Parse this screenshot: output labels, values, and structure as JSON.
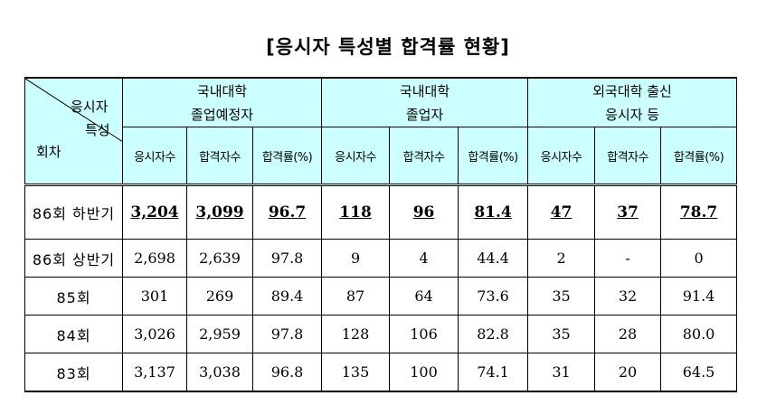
{
  "title": "[응시자 특성별 합격률 현황]",
  "corner": {
    "top_label": "응시자",
    "mid_label": "특성",
    "bottom_label": "회차"
  },
  "groups": [
    {
      "line1": "국내대학",
      "line2": "졸업예정자"
    },
    {
      "line1": "국내대학",
      "line2": "졸업자"
    },
    {
      "line1": "외국대학 출신",
      "line2": "응시자 등"
    }
  ],
  "subheaders": [
    "응시자수",
    "합격자수",
    "합격률(%)",
    "응시자수",
    "합격자수",
    "합격률(%)",
    "응시자수",
    "합격자수",
    "합격률(%)"
  ],
  "rows": [
    {
      "round": "86회 하반기",
      "cells": [
        "3,204",
        "3,099",
        "96.7",
        "118",
        "96",
        "81.4",
        "47",
        "37",
        "78.7"
      ]
    },
    {
      "round": "86회 상반기",
      "cells": [
        "2,698",
        "2,639",
        "97.8",
        "9",
        "4",
        "44.4",
        "2",
        "-",
        "0"
      ]
    },
    {
      "round": "85회",
      "cells": [
        "301",
        "269",
        "89.4",
        "87",
        "64",
        "73.6",
        "35",
        "32",
        "91.4"
      ]
    },
    {
      "round": "84회",
      "cells": [
        "3,026",
        "2,959",
        "97.8",
        "128",
        "106",
        "82.8",
        "35",
        "28",
        "80.0"
      ]
    },
    {
      "round": "83회",
      "cells": [
        "3,137",
        "3,038",
        "96.8",
        "135",
        "100",
        "74.1",
        "31",
        "20",
        "64.5"
      ]
    }
  ]
}
